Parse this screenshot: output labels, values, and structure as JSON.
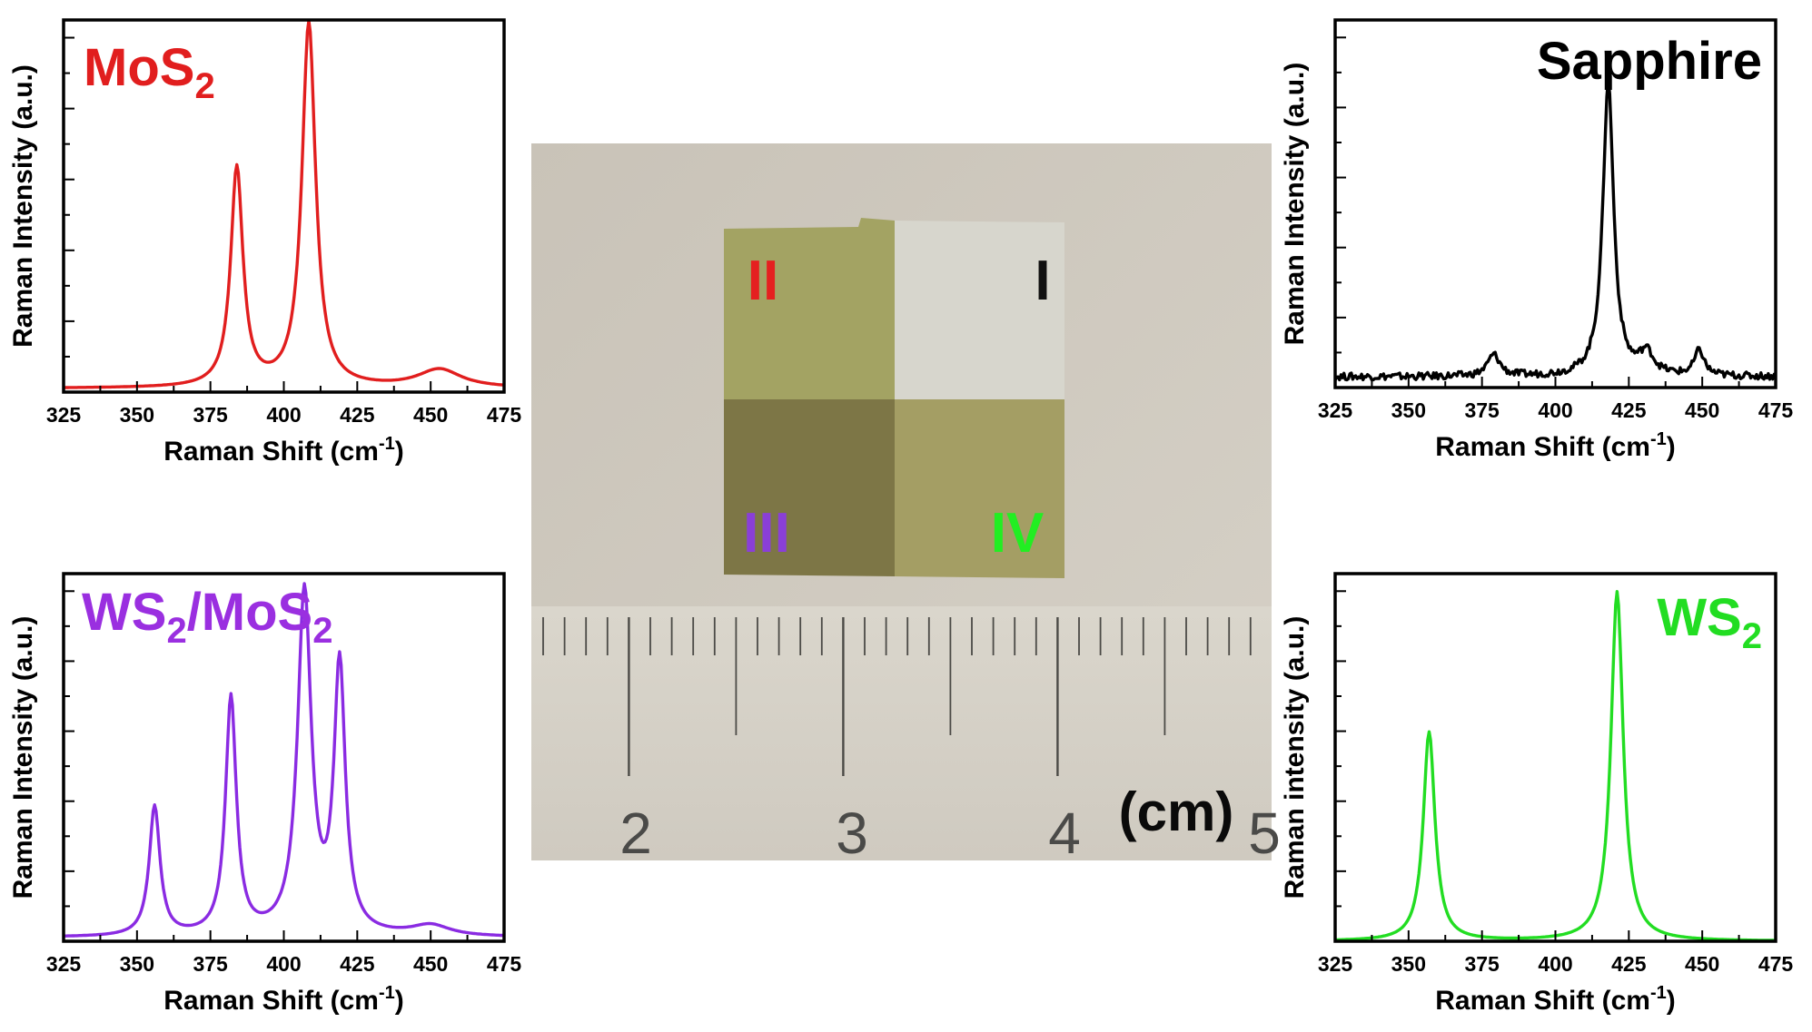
{
  "chart_data": [
    {
      "type": "line",
      "panel": "top-left",
      "title": "MoS",
      "title_sub": "2",
      "title_color": "#e11e1e",
      "xlabel": "Raman Shift (cm",
      "xlabel_sup": "-1",
      "xlabel_end": ")",
      "ylabel": "Raman Intensity (a.u.)",
      "xlim": [
        325,
        475
      ],
      "ylim": [
        0,
        1
      ],
      "xticks": [
        325,
        350,
        375,
        400,
        425,
        450,
        475
      ],
      "color": "#e11e1e",
      "series": [
        {
          "peaks": [
            [
              384,
              0.6,
              2.5
            ],
            [
              408.5,
              1.0,
              2.8
            ],
            [
              453,
              0.05,
              9
            ]
          ],
          "baseline": 0.01
        }
      ]
    },
    {
      "type": "line",
      "panel": "top-right",
      "title": "Sapphire",
      "title_sub": "",
      "title_color": "#000000",
      "xlabel": "Raman Shift (cm",
      "xlabel_sup": "-1",
      "xlabel_end": ")",
      "ylabel": "Raman Intensity (a.u.)",
      "xlim": [
        325,
        475
      ],
      "ylim": [
        0,
        1
      ],
      "xticks": [
        325,
        350,
        375,
        400,
        425,
        450,
        475
      ],
      "color": "#000000",
      "series": [
        {
          "peaks": [
            [
              379,
              0.06,
              2.5
            ],
            [
              418,
              0.82,
              2.2
            ],
            [
              431,
              0.06,
              3
            ],
            [
              449,
              0.07,
              2
            ]
          ],
          "baseline": 0.03,
          "noise": 0.01
        }
      ]
    },
    {
      "type": "line",
      "panel": "bottom-left",
      "title": "WS",
      "title_sub": "2",
      "title_mid": "/MoS",
      "title_sub2": "2",
      "title_color": "#9a2fe0",
      "xlabel": "Raman Shift (cm",
      "xlabel_sup": "-1",
      "xlabel_end": ")",
      "ylabel": "Raman Intensity (a.u.)",
      "xlim": [
        325,
        475
      ],
      "ylim": [
        0,
        1
      ],
      "xticks": [
        325,
        350,
        375,
        400,
        425,
        450,
        475
      ],
      "color": "#8a2be2",
      "series": [
        {
          "peaks": [
            [
              356,
              0.36,
              2.2
            ],
            [
              382,
              0.66,
              2.2
            ],
            [
              407,
              0.95,
              2.8
            ],
            [
              419,
              0.74,
              2.3
            ],
            [
              450,
              0.03,
              8
            ]
          ],
          "baseline": 0.01
        }
      ]
    },
    {
      "type": "line",
      "panel": "bottom-right",
      "title": "WS",
      "title_sub": "2",
      "title_color": "#22dd22",
      "xlabel": "Raman Shift (cm",
      "xlabel_sup": "-1",
      "xlabel_end": ")",
      "ylabel": "Raman intensity (a.u.)",
      "xlim": [
        325,
        475
      ],
      "ylim": [
        0,
        1
      ],
      "xticks": [
        325,
        350,
        375,
        400,
        425,
        450,
        475
      ],
      "color": "#22dd22",
      "series": [
        {
          "peaks": [
            [
              357,
              0.58,
              2.4
            ],
            [
              421,
              0.97,
              2.5
            ]
          ],
          "baseline": 0.0
        }
      ]
    }
  ],
  "photo": {
    "quadrant_labels": [
      {
        "text": "II",
        "color": "#e52020"
      },
      {
        "text": "I",
        "color": "#111111"
      },
      {
        "text": "III",
        "color": "#8a3fd8"
      },
      {
        "text": "IV",
        "color": "#22ee22"
      }
    ],
    "ruler_numbers": [
      "2",
      "3",
      "4",
      "5"
    ],
    "unit_label": "(cm)"
  }
}
